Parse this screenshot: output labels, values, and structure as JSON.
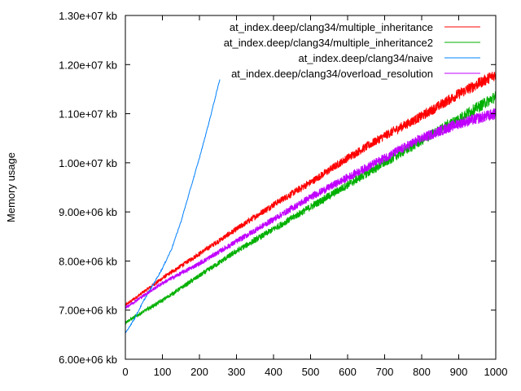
{
  "chart_data": {
    "type": "line",
    "ylabel": "Memory usage",
    "xlabel": "",
    "xlim": [
      0,
      1000
    ],
    "ylim": [
      6000000,
      13000000
    ],
    "x_ticks": [
      0,
      100,
      200,
      300,
      400,
      500,
      600,
      700,
      800,
      900,
      1000
    ],
    "y_ticks": [
      {
        "value": 6000000,
        "label": "6.00e+06 kb"
      },
      {
        "value": 7000000,
        "label": "7.00e+06 kb"
      },
      {
        "value": 8000000,
        "label": "8.00e+06 kb"
      },
      {
        "value": 9000000,
        "label": "9.00e+06 kb"
      },
      {
        "value": 10000000,
        "label": "1.00e+07 kb"
      },
      {
        "value": 11000000,
        "label": "1.10e+07 kb"
      },
      {
        "value": 12000000,
        "label": "1.20e+07 kb"
      },
      {
        "value": 13000000,
        "label": "1.30e+07 kb"
      }
    ],
    "grid": false,
    "legend_position": "top-right",
    "series": [
      {
        "name": "at_index.deep/clang34/multiple_inheritance",
        "color": "#ff0000",
        "x": [
          0,
          100,
          200,
          300,
          400,
          500,
          600,
          700,
          800,
          900,
          1000
        ],
        "y": [
          7100000,
          7650000,
          8150000,
          8650000,
          9150000,
          9600000,
          10100000,
          10550000,
          10950000,
          11400000,
          11800000
        ]
      },
      {
        "name": "at_index.deep/clang34/multiple_inheritance2",
        "color": "#00b000",
        "x": [
          0,
          100,
          200,
          300,
          400,
          500,
          600,
          700,
          800,
          900,
          1000
        ],
        "y": [
          6750000,
          7200000,
          7700000,
          8200000,
          8650000,
          9100000,
          9550000,
          10000000,
          10450000,
          10900000,
          11350000
        ]
      },
      {
        "name": "at_index.deep/clang34/naive",
        "color": "#0080ff",
        "x": [
          0,
          25,
          50,
          75,
          100,
          125,
          150,
          175,
          200,
          225,
          250,
          255
        ],
        "y": [
          6530000,
          6830000,
          7200000,
          7520000,
          7850000,
          8250000,
          8800000,
          9450000,
          10100000,
          10800000,
          11550000,
          11700000
        ]
      },
      {
        "name": "at_index.deep/clang34/overload_resolution",
        "color": "#c000ff",
        "x": [
          0,
          100,
          200,
          300,
          400,
          500,
          600,
          700,
          800,
          900,
          1000
        ],
        "y": [
          7050000,
          7550000,
          7950000,
          8400000,
          8850000,
          9300000,
          9700000,
          10100000,
          10500000,
          10800000,
          11000000
        ]
      }
    ]
  }
}
